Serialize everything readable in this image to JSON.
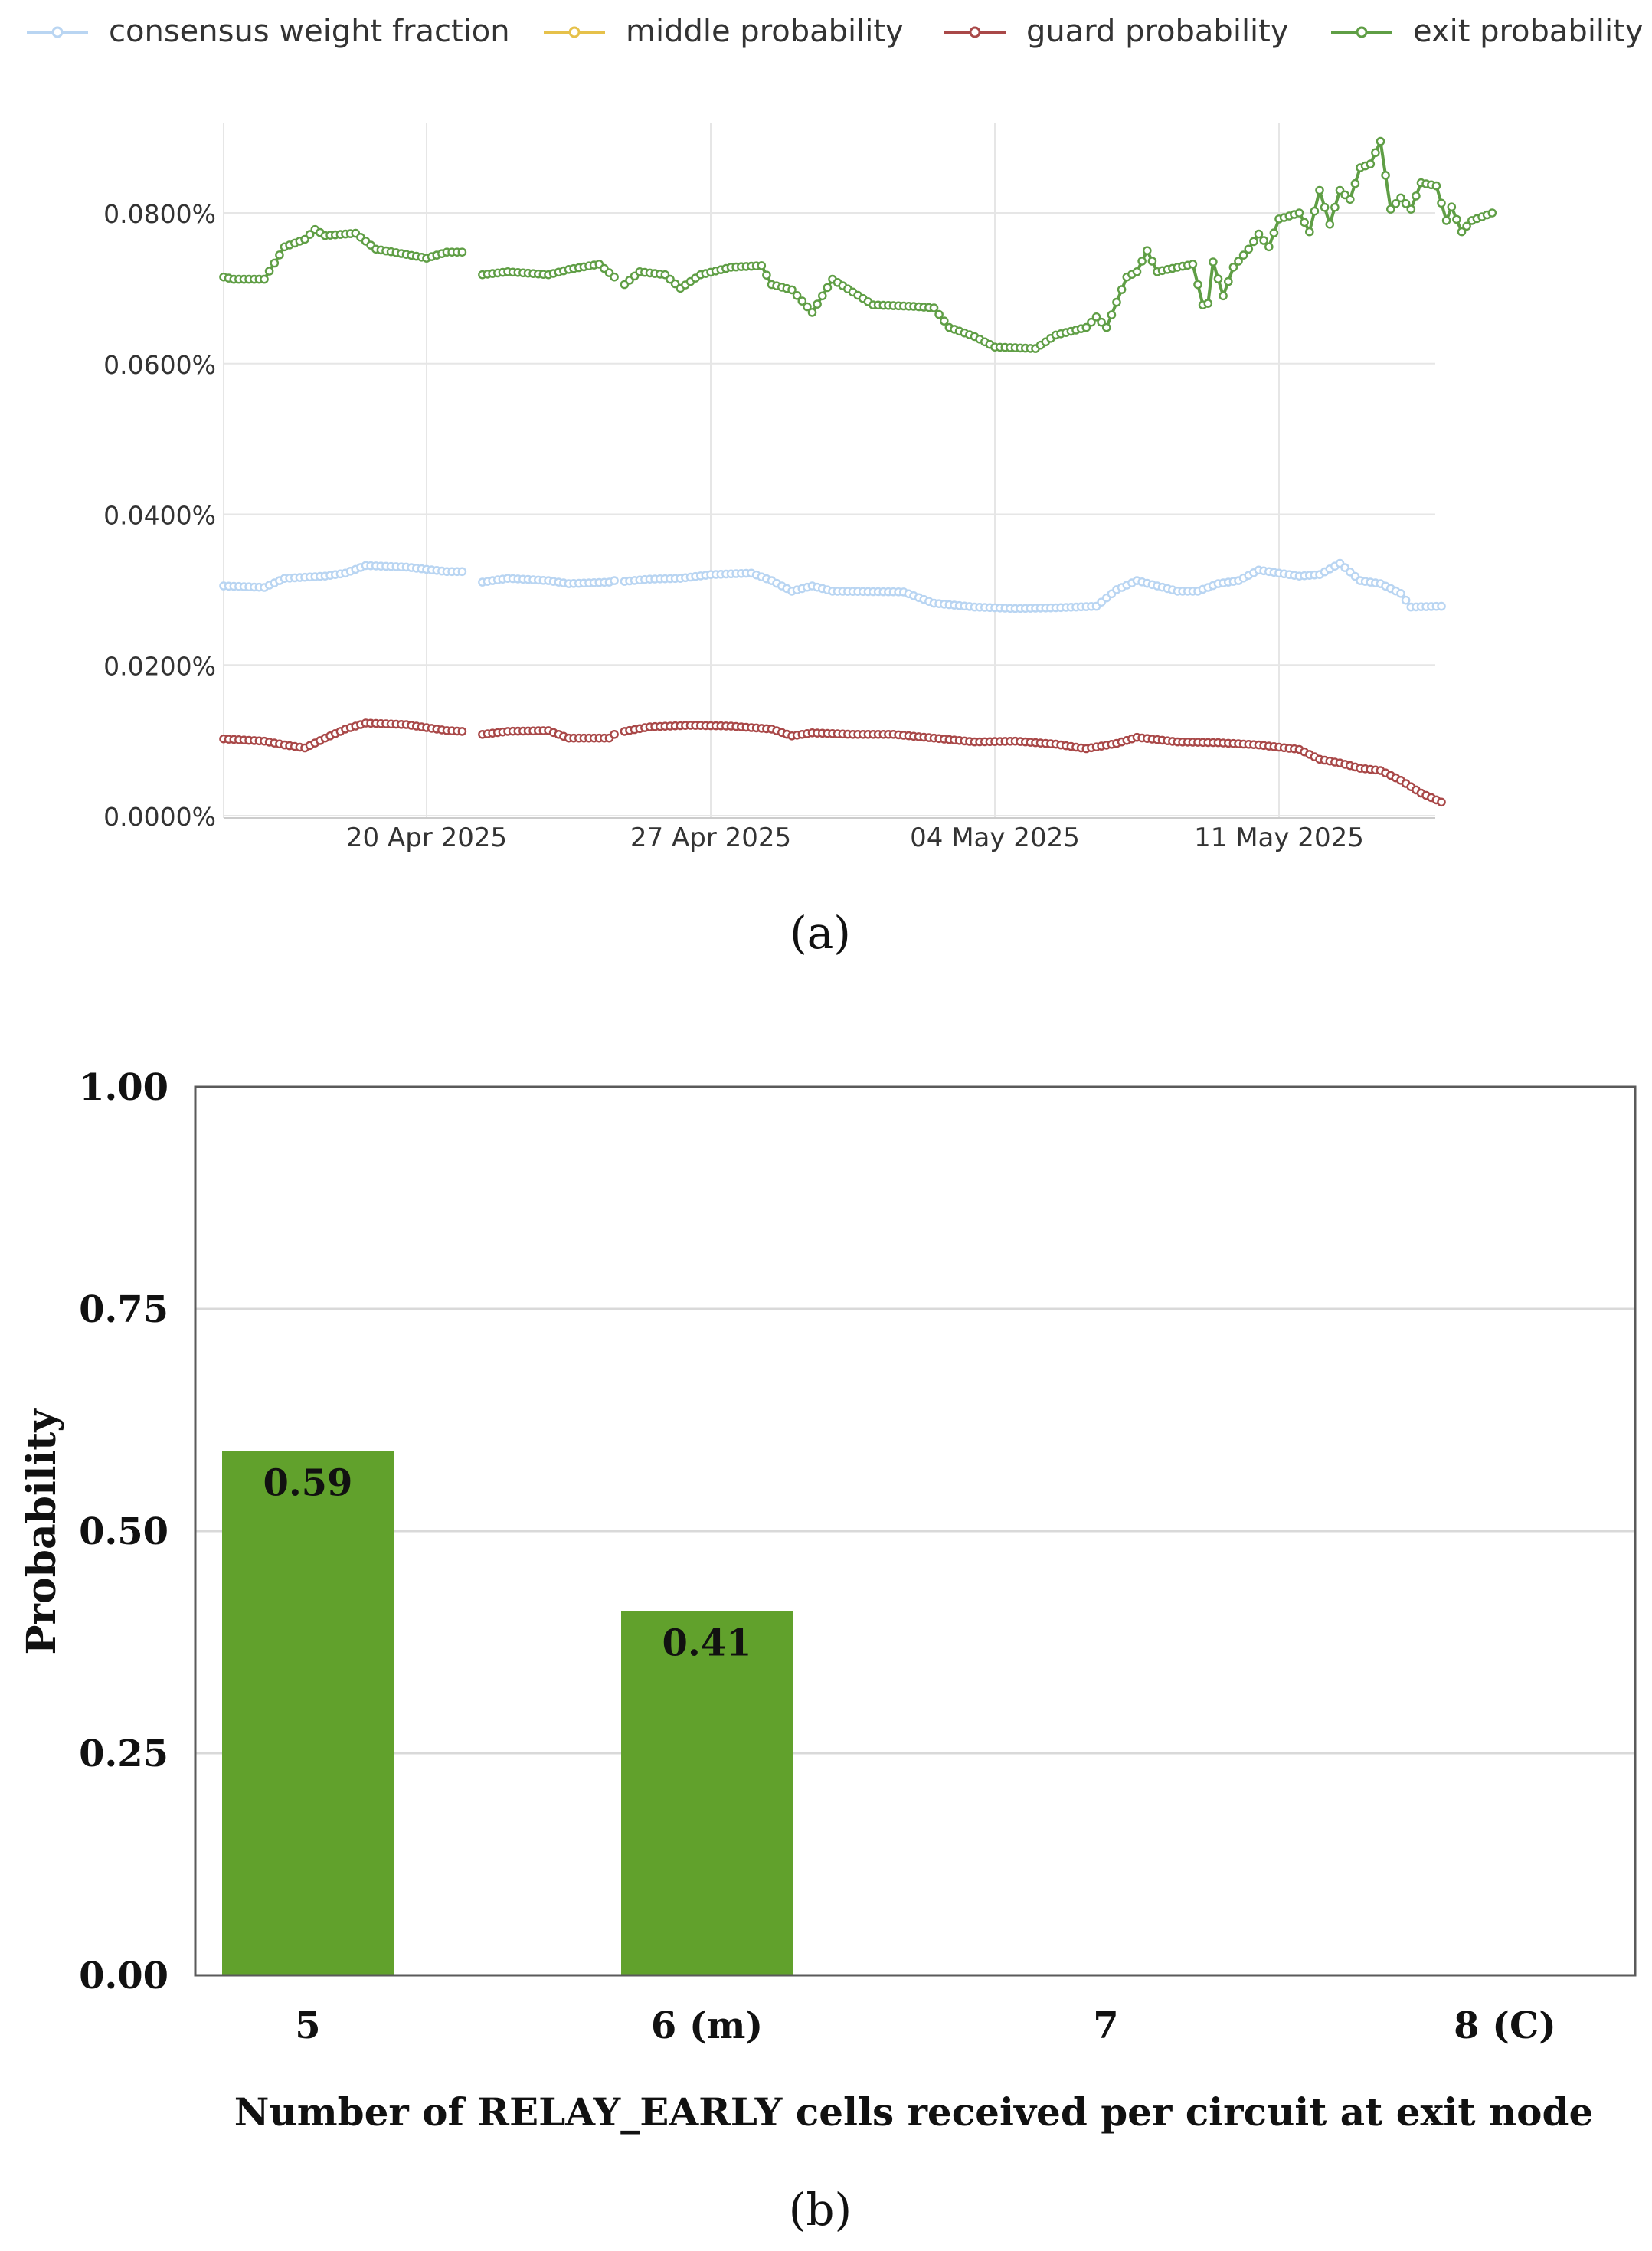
{
  "panels": {
    "a_label": "(a)",
    "b_label": "(b)"
  },
  "chart_data": [
    {
      "type": "line",
      "legend": [
        {
          "name": "consensus weight fraction",
          "color": "#b9d5f2"
        },
        {
          "name": "middle probability",
          "color": "#e6c14a"
        },
        {
          "name": "guard probability",
          "color": "#a94848"
        },
        {
          "name": "exit probability",
          "color": "#5f9e45"
        }
      ],
      "legend_position": "top",
      "x_ticks": [
        "20 Apr 2025",
        "27 Apr 2025",
        "04 May 2025",
        "11 May 2025"
      ],
      "y_ticks": [
        "0.0000%",
        "0.0200%",
        "0.0400%",
        "0.0600%",
        "0.0800%"
      ],
      "x_range": [
        "2025-04-15",
        "2025-05-15"
      ],
      "ylim_percent": [
        -0.0003,
        0.092
      ],
      "grid": true,
      "sampling": "every 3 hours",
      "gaps": [
        [
          "2025-04-20T21:00",
          "2025-04-21T09:00"
        ],
        [
          "2025-04-24T15:00",
          "2025-04-24T21:00"
        ]
      ],
      "series": [
        {
          "name": "consensus weight fraction",
          "color": "#b9d5f2",
          "knots": [
            [
              "2025-04-15T00:00",
              0.0305
            ],
            [
              "2025-04-16T00:00",
              0.0303
            ],
            [
              "2025-04-16T12:00",
              0.0315
            ],
            [
              "2025-04-17T12:00",
              0.0318
            ],
            [
              "2025-04-18T00:00",
              0.0322
            ],
            [
              "2025-04-18T12:00",
              0.0332
            ],
            [
              "2025-04-19T12:00",
              0.033
            ],
            [
              "2025-04-20T12:00",
              0.0324
            ],
            [
              "2025-04-20T21:00",
              0.0324
            ],
            [
              "2025-04-21T09:00",
              0.031
            ],
            [
              "2025-04-22T00:00",
              0.0315
            ],
            [
              "2025-04-23T00:00",
              0.0312
            ],
            [
              "2025-04-23T12:00",
              0.0308
            ],
            [
              "2025-04-24T12:00",
              0.031
            ],
            [
              "2025-04-24T15:00",
              0.0312
            ],
            [
              "2025-04-24T21:00",
              0.0311
            ],
            [
              "2025-04-25T12:00",
              0.0314
            ],
            [
              "2025-04-26T06:00",
              0.0315
            ],
            [
              "2025-04-27T00:00",
              0.032
            ],
            [
              "2025-04-28T00:00",
              0.0322
            ],
            [
              "2025-04-28T12:00",
              0.0312
            ],
            [
              "2025-04-29T00:00",
              0.0298
            ],
            [
              "2025-04-29T12:00",
              0.0305
            ],
            [
              "2025-04-30T00:00",
              0.0298
            ],
            [
              "2025-05-01T18:00",
              0.0297
            ],
            [
              "2025-05-02T12:00",
              0.0282
            ],
            [
              "2025-05-03T12:00",
              0.0277
            ],
            [
              "2025-05-04T12:00",
              0.0275
            ],
            [
              "2025-05-05T12:00",
              0.0276
            ],
            [
              "2025-05-06T12:00",
              0.0278
            ],
            [
              "2025-05-07T00:00",
              0.03
            ],
            [
              "2025-05-07T12:00",
              0.0312
            ],
            [
              "2025-05-08T12:00",
              0.0298
            ],
            [
              "2025-05-09T00:00",
              0.0298
            ],
            [
              "2025-05-09T12:00",
              0.0308
            ],
            [
              "2025-05-10T00:00",
              0.0312
            ],
            [
              "2025-05-10T12:00",
              0.0326
            ],
            [
              "2025-05-11T12:00",
              0.0318
            ],
            [
              "2025-05-12T00:00",
              0.032
            ],
            [
              "2025-05-12T12:00",
              0.0335
            ],
            [
              "2025-05-13T00:00",
              0.0312
            ],
            [
              "2025-05-13T12:00",
              0.0308
            ],
            [
              "2025-05-14T00:00",
              0.0295
            ],
            [
              "2025-05-14T06:00",
              0.0277
            ],
            [
              "2025-05-15T00:00",
              0.0278
            ]
          ]
        },
        {
          "name": "guard probability",
          "color": "#a94848",
          "knots": [
            [
              "2025-04-15T00:00",
              0.0102
            ],
            [
              "2025-04-16T00:00",
              0.0099
            ],
            [
              "2025-04-16T12:00",
              0.0094
            ],
            [
              "2025-04-17T00:00",
              0.009
            ],
            [
              "2025-04-17T12:00",
              0.0103
            ],
            [
              "2025-04-18T00:00",
              0.0115
            ],
            [
              "2025-04-18T12:00",
              0.0123
            ],
            [
              "2025-04-19T12:00",
              0.0121
            ],
            [
              "2025-04-20T12:00",
              0.0113
            ],
            [
              "2025-04-20T21:00",
              0.0112
            ],
            [
              "2025-04-21T09:00",
              0.0108
            ],
            [
              "2025-04-22T00:00",
              0.0112
            ],
            [
              "2025-04-23T00:00",
              0.0113
            ],
            [
              "2025-04-23T12:00",
              0.0103
            ],
            [
              "2025-04-24T12:00",
              0.0103
            ],
            [
              "2025-04-24T15:00",
              0.0108
            ],
            [
              "2025-04-24T21:00",
              0.0112
            ],
            [
              "2025-04-25T12:00",
              0.0118
            ],
            [
              "2025-04-26T12:00",
              0.012
            ],
            [
              "2025-04-27T12:00",
              0.0119
            ],
            [
              "2025-04-28T12:00",
              0.0115
            ],
            [
              "2025-04-29T00:00",
              0.0106
            ],
            [
              "2025-04-29T12:00",
              0.011
            ],
            [
              "2025-04-30T12:00",
              0.0108
            ],
            [
              "2025-05-01T12:00",
              0.0108
            ],
            [
              "2025-05-02T12:00",
              0.0103
            ],
            [
              "2025-05-03T12:00",
              0.0098
            ],
            [
              "2025-05-04T12:00",
              0.0099
            ],
            [
              "2025-05-05T12:00",
              0.0095
            ],
            [
              "2025-05-06T06:00",
              0.0089
            ],
            [
              "2025-05-07T00:00",
              0.0096
            ],
            [
              "2025-05-07T12:00",
              0.0104
            ],
            [
              "2025-05-08T12:00",
              0.0098
            ],
            [
              "2025-05-09T12:00",
              0.0097
            ],
            [
              "2025-05-10T12:00",
              0.0094
            ],
            [
              "2025-05-11T12:00",
              0.0088
            ],
            [
              "2025-05-12T00:00",
              0.0075
            ],
            [
              "2025-05-12T12:00",
              0.007
            ],
            [
              "2025-05-13T00:00",
              0.0063
            ],
            [
              "2025-05-13T12:00",
              0.006
            ],
            [
              "2025-05-14T00:00",
              0.0047
            ],
            [
              "2025-05-14T12:00",
              0.003
            ],
            [
              "2025-05-15T00:00",
              0.0018
            ]
          ]
        },
        {
          "name": "exit probability",
          "color": "#5f9e45",
          "knots": [
            [
              "2025-04-15T00:00",
              0.0715
            ],
            [
              "2025-04-15T06:00",
              0.0712
            ],
            [
              "2025-04-16T00:00",
              0.0712
            ],
            [
              "2025-04-16T12:00",
              0.0755
            ],
            [
              "2025-04-17T00:00",
              0.0765
            ],
            [
              "2025-04-17T06:00",
              0.0778
            ],
            [
              "2025-04-17T12:00",
              0.077
            ],
            [
              "2025-04-18T06:00",
              0.0773
            ],
            [
              "2025-04-18T18:00",
              0.0752
            ],
            [
              "2025-04-19T12:00",
              0.0745
            ],
            [
              "2025-04-20T00:00",
              0.074
            ],
            [
              "2025-04-20T12:00",
              0.0748
            ],
            [
              "2025-04-20T21:00",
              0.0748
            ],
            [
              "2025-04-21T09:00",
              0.0718
            ],
            [
              "2025-04-22T00:00",
              0.0722
            ],
            [
              "2025-04-23T00:00",
              0.0718
            ],
            [
              "2025-04-23T12:00",
              0.0725
            ],
            [
              "2025-04-24T06:00",
              0.0732
            ],
            [
              "2025-04-24T15:00",
              0.0715
            ],
            [
              "2025-04-24T21:00",
              0.0705
            ],
            [
              "2025-04-25T06:00",
              0.0722
            ],
            [
              "2025-04-25T21:00",
              0.0718
            ],
            [
              "2025-04-26T06:00",
              0.07
            ],
            [
              "2025-04-26T18:00",
              0.0718
            ],
            [
              "2025-04-27T12:00",
              0.0728
            ],
            [
              "2025-04-28T06:00",
              0.073
            ],
            [
              "2025-04-28T12:00",
              0.0705
            ],
            [
              "2025-04-29T00:00",
              0.0698
            ],
            [
              "2025-04-29T12:00",
              0.0668
            ],
            [
              "2025-04-30T00:00",
              0.0712
            ],
            [
              "2025-04-30T12:00",
              0.0695
            ],
            [
              "2025-05-01T00:00",
              0.0678
            ],
            [
              "2025-05-02T00:00",
              0.0676
            ],
            [
              "2025-05-02T12:00",
              0.0674
            ],
            [
              "2025-05-02T21:00",
              0.0648
            ],
            [
              "2025-05-03T12:00",
              0.0636
            ],
            [
              "2025-05-04T00:00",
              0.0622
            ],
            [
              "2025-05-05T00:00",
              0.062
            ],
            [
              "2025-05-05T12:00",
              0.0638
            ],
            [
              "2025-05-06T06:00",
              0.0648
            ],
            [
              "2025-05-06T12:00",
              0.0662
            ],
            [
              "2025-05-06T18:00",
              0.0648
            ],
            [
              "2025-05-07T06:00",
              0.0715
            ],
            [
              "2025-05-07T12:00",
              0.0722
            ],
            [
              "2025-05-07T18:00",
              0.075
            ],
            [
              "2025-05-08T00:00",
              0.0722
            ],
            [
              "2025-05-08T12:00",
              0.0728
            ],
            [
              "2025-05-08T21:00",
              0.0732
            ],
            [
              "2025-05-09T03:00",
              0.0678
            ],
            [
              "2025-05-09T06:00",
              0.068
            ],
            [
              "2025-05-09T09:00",
              0.0735
            ],
            [
              "2025-05-09T15:00",
              0.069
            ],
            [
              "2025-05-09T21:00",
              0.0728
            ],
            [
              "2025-05-10T06:00",
              0.0752
            ],
            [
              "2025-05-10T12:00",
              0.0772
            ],
            [
              "2025-05-10T18:00",
              0.0755
            ],
            [
              "2025-05-11T00:00",
              0.0792
            ],
            [
              "2025-05-11T12:00",
              0.08
            ],
            [
              "2025-05-11T18:00",
              0.0775
            ],
            [
              "2025-05-12T00:00",
              0.083
            ],
            [
              "2025-05-12T06:00",
              0.0785
            ],
            [
              "2025-05-12T12:00",
              0.083
            ],
            [
              "2025-05-12T18:00",
              0.0818
            ],
            [
              "2025-05-13T00:00",
              0.086
            ],
            [
              "2025-05-13T06:00",
              0.0865
            ],
            [
              "2025-05-13T12:00",
              0.0895
            ],
            [
              "2025-05-13T18:00",
              0.0805
            ],
            [
              "2025-05-14T00:00",
              0.082
            ],
            [
              "2025-05-14T06:00",
              0.0805
            ],
            [
              "2025-05-14T12:00",
              0.084
            ],
            [
              "2025-05-14T21:00",
              0.0836
            ],
            [
              "2025-05-15T03:00",
              0.079
            ],
            [
              "2025-05-15T06:00",
              0.0808
            ],
            [
              "2025-05-15T12:00",
              0.0775
            ],
            [
              "2025-05-15T18:00",
              0.079
            ],
            [
              "2025-05-16T06:00",
              0.08
            ]
          ]
        }
      ]
    },
    {
      "type": "bar",
      "categories": [
        "5",
        "6 (m)",
        "7",
        "8 (C)"
      ],
      "values": [
        0.59,
        0.41,
        0,
        0
      ],
      "value_labels": [
        "0.59",
        "0.41",
        "",
        ""
      ],
      "y_ticks": [
        "0.00",
        "0.25",
        "0.50",
        "0.75",
        "1.00"
      ],
      "ylim": [
        0,
        1
      ],
      "xlabel": "Number of RELAY_EARLY cells received per circuit at exit node",
      "ylabel": "Probability",
      "bar_color": "#61a12c",
      "grid": true
    }
  ]
}
